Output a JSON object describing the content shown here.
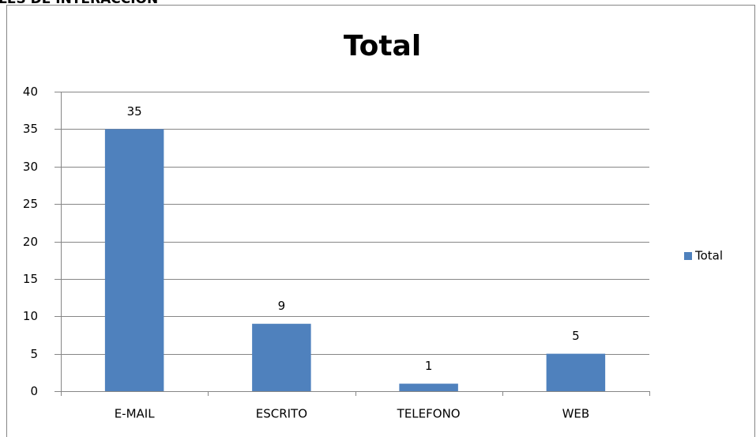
{
  "caption": "LES DE INTERACCIÓN",
  "chart_data": {
    "type": "bar",
    "title": "Total",
    "categories": [
      "E-MAIL",
      "ESCRITO",
      "TELEFONO",
      "WEB"
    ],
    "series": [
      {
        "name": "Total",
        "color": "#4f81bd",
        "values": [
          35,
          9,
          1,
          5
        ]
      }
    ],
    "ylim": [
      0,
      40
    ],
    "yticks": [
      0,
      5,
      10,
      15,
      20,
      25,
      30,
      35,
      40
    ],
    "grid": true,
    "legend": "right",
    "data_labels": true
  }
}
